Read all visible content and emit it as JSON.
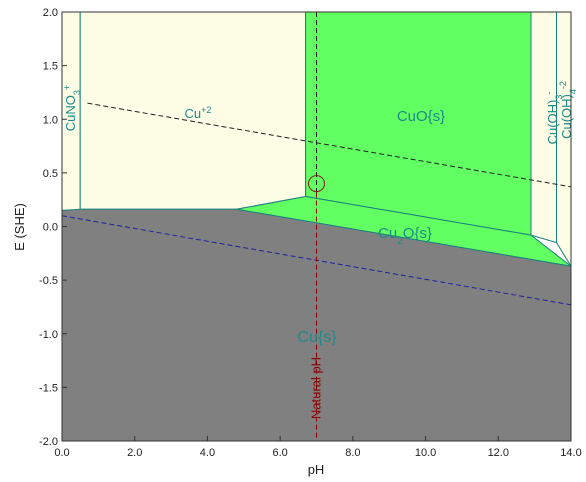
{
  "chart_data": {
    "type": "area",
    "title": "",
    "xlabel": "pH",
    "ylabel": "E (SHE)",
    "xlim": [
      0,
      14
    ],
    "ylim": [
      -2,
      2
    ],
    "xticks": [
      "0.0",
      "2.0",
      "4.0",
      "6.0",
      "8.0",
      "10.0",
      "12.0",
      "14.0"
    ],
    "yticks": [
      "2.0",
      "1.5",
      "1.0",
      "0.5",
      "0.0",
      "-0.5",
      "-1.0",
      "-1.5",
      "-2.0"
    ],
    "colors": {
      "aqueous_region": "#fdfde6",
      "solid_oxide_region": "#62ff62",
      "metal_region": "#808080",
      "boundary_line": "#1a8080",
      "water_line": "#2020a0",
      "natural_ph_line": "#8b0000",
      "label_text": "#1c8a8a"
    },
    "regions": [
      {
        "id": "cuno3",
        "label": "CuNO3+",
        "text_parts": [
          "CuNO",
          "3",
          "+"
        ],
        "type": "aqueous",
        "polygon": [
          [
            0,
            2
          ],
          [
            0.5,
            2
          ],
          [
            0.5,
            0.15
          ],
          [
            0,
            0.15
          ]
        ]
      },
      {
        "id": "cu2",
        "label": "Cu+2",
        "text_parts": [
          "Cu",
          "+2"
        ],
        "type": "aqueous",
        "polygon": [
          [
            0.5,
            2
          ],
          [
            6.7,
            2
          ],
          [
            6.7,
            0.28
          ],
          [
            4.8,
            0.16
          ],
          [
            0.5,
            0.16
          ]
        ]
      },
      {
        "id": "cuo",
        "label": "CuO{s}",
        "text_parts": [
          "CuO{s}"
        ],
        "type": "solid",
        "polygon": [
          [
            6.7,
            2
          ],
          [
            12.9,
            2
          ],
          [
            12.9,
            -0.08
          ],
          [
            6.7,
            0.28
          ]
        ]
      },
      {
        "id": "cu2o",
        "label": "Cu2O{s}",
        "text_parts": [
          "Cu",
          "2",
          "O{s}"
        ],
        "type": "solid",
        "polygon": [
          [
            4.8,
            0.16
          ],
          [
            6.7,
            0.28
          ],
          [
            12.9,
            -0.08
          ],
          [
            14,
            -0.37
          ]
        ]
      },
      {
        "id": "cuoh3",
        "label": "Cu(OH)3-",
        "text_parts": [
          "Cu(OH)",
          "3",
          "-"
        ],
        "type": "aqueous",
        "polygon": [
          [
            12.9,
            2
          ],
          [
            13.6,
            2
          ],
          [
            13.6,
            -0.15
          ],
          [
            12.9,
            -0.08
          ]
        ]
      },
      {
        "id": "cuoh4",
        "label": "Cu(OH)4-2",
        "text_parts": [
          "Cu(OH)",
          "4",
          "-2"
        ],
        "type": "aqueous",
        "polygon": [
          [
            13.6,
            2
          ],
          [
            14,
            2
          ],
          [
            14,
            -0.37
          ],
          [
            13.6,
            -0.15
          ]
        ]
      },
      {
        "id": "cu",
        "label": "Cu{s}",
        "text_parts": [
          "Cu{s}"
        ],
        "type": "metal",
        "polygon": [
          [
            0,
            0.15
          ],
          [
            0.5,
            0.16
          ],
          [
            4.8,
            0.16
          ],
          [
            14,
            -0.37
          ],
          [
            14,
            -2
          ],
          [
            0,
            -2
          ]
        ]
      }
    ],
    "water_lines": [
      {
        "name": "oxygen",
        "points": [
          [
            0.7,
            1.15
          ],
          [
            14,
            0.37
          ]
        ]
      },
      {
        "name": "hydrogen",
        "points": [
          [
            0,
            0.1
          ],
          [
            14,
            -0.73
          ]
        ]
      }
    ],
    "natural_ph": {
      "label": "Natural pH",
      "x": 7,
      "point_y": 0.4
    }
  }
}
